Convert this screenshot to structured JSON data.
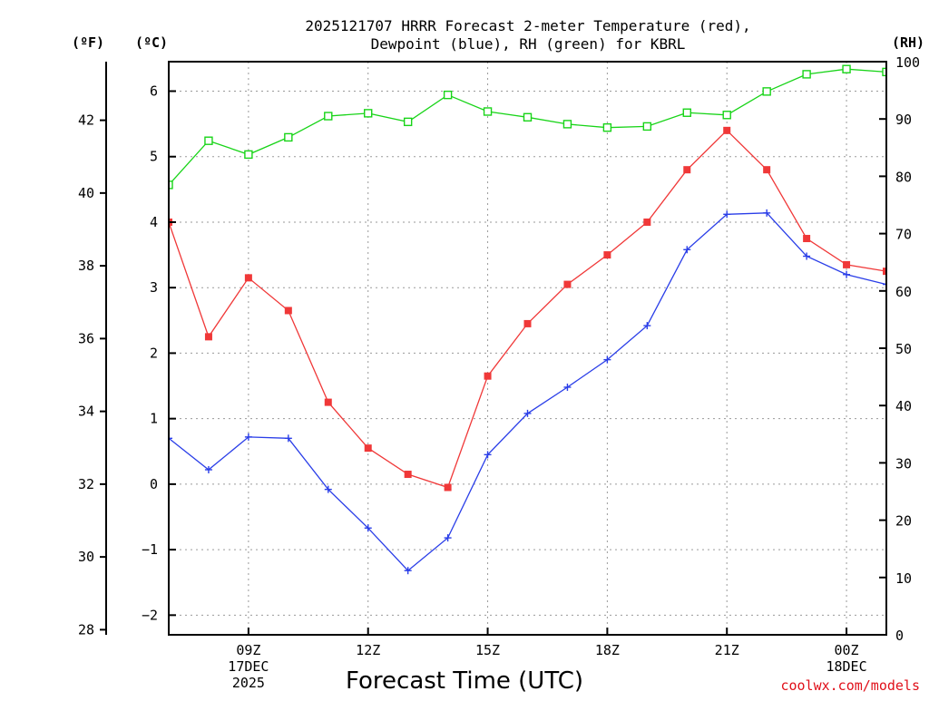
{
  "chart_data": {
    "type": "line",
    "title_lines": [
      "2025121707 HRRR Forecast 2-meter Temperature (red),",
      "Dewpoint (blue), RH (green) for KBRL"
    ],
    "xlabel": "Forecast Time (UTC)",
    "credit": "coolwx.com/models",
    "units": {
      "fahrenheit": "(ºF)",
      "celsius": "(ºC)",
      "rh": "(RH)"
    },
    "x_hours": [
      0,
      1,
      2,
      3,
      4,
      5,
      6,
      7,
      8,
      9,
      10,
      11,
      12,
      13,
      14,
      15,
      16,
      17,
      18
    ],
    "xlim": [
      0,
      18
    ],
    "x_ticks": [
      {
        "hour": 2,
        "lines": [
          "09Z",
          "17DEC",
          "2025"
        ]
      },
      {
        "hour": 5,
        "lines": [
          "12Z"
        ]
      },
      {
        "hour": 8,
        "lines": [
          "15Z"
        ]
      },
      {
        "hour": 11,
        "lines": [
          "18Z"
        ]
      },
      {
        "hour": 14,
        "lines": [
          "21Z"
        ]
      },
      {
        "hour": 17,
        "lines": [
          "00Z",
          "18DEC"
        ]
      }
    ],
    "celsius_axis": {
      "range": [
        -2.3,
        6.45
      ],
      "ticks": [
        -2,
        -1,
        0,
        1,
        2,
        3,
        4,
        5,
        6
      ],
      "labels": [
        "−2",
        "−1",
        "0",
        "1",
        "2",
        "3",
        "4",
        "5",
        "6"
      ]
    },
    "fahrenheit_axis": {
      "ticks": [
        28,
        30,
        32,
        34,
        36,
        38,
        40,
        42
      ],
      "labels": [
        "28",
        "30",
        "32",
        "34",
        "36",
        "38",
        "40",
        "42"
      ]
    },
    "rh_axis": {
      "range": [
        0,
        100
      ],
      "ticks": [
        0,
        10,
        20,
        30,
        40,
        50,
        60,
        70,
        80,
        90,
        100
      ],
      "labels": [
        "0",
        "10",
        "20",
        "30",
        "40",
        "50",
        "60",
        "70",
        "80",
        "90",
        "100"
      ]
    },
    "series": [
      {
        "name": "2-meter Temperature",
        "axis": "celsius",
        "color": "#f03838",
        "marker": "filled-square",
        "values": [
          4.0,
          2.25,
          3.15,
          2.65,
          1.25,
          0.55,
          0.15,
          -0.05,
          1.65,
          2.45,
          3.05,
          3.5,
          4.0,
          4.8,
          5.4,
          4.8,
          3.75,
          3.35,
          3.25
        ]
      },
      {
        "name": "Dewpoint",
        "axis": "celsius",
        "color": "#2a3ee8",
        "marker": "plus",
        "values": [
          0.7,
          0.22,
          0.72,
          0.7,
          -0.08,
          -0.67,
          -1.32,
          -0.82,
          0.45,
          1.08,
          1.48,
          1.9,
          2.42,
          3.58,
          4.12,
          4.14,
          3.48,
          3.2,
          3.05
        ]
      },
      {
        "name": "RH",
        "axis": "rh",
        "color": "#18d418",
        "marker": "open-square",
        "values": [
          78.5,
          86.2,
          83.8,
          86.8,
          90.5,
          91.0,
          89.5,
          94.2,
          91.3,
          90.3,
          89.1,
          88.5,
          88.7,
          91.1,
          90.7,
          94.8,
          97.8,
          98.7,
          98.2
        ]
      }
    ]
  }
}
